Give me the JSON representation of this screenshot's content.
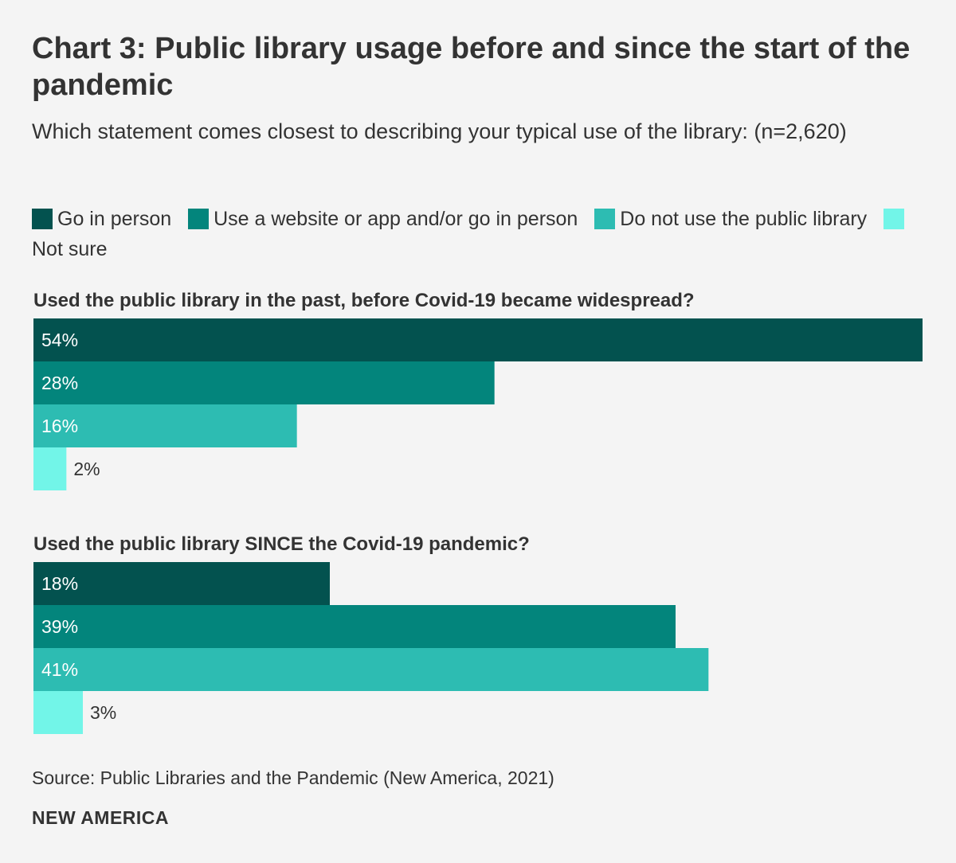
{
  "title": "Chart 3: Public library usage before and since the start of the pandemic",
  "subtitle": "Which statement comes closest to describing your typical use of the library: (n=2,620)",
  "source": "Source: Public Libraries and the Pandemic (New America, 2021)",
  "brand": "NEW AMERICA",
  "colors": {
    "go_in_person": "#03524f",
    "website_or_app": "#03857c",
    "do_not_use": "#2dbcb2",
    "not_sure": "#72f5e8",
    "background": "#f4f4f4",
    "text_dark": "#333333",
    "text_light": "#ffffff"
  },
  "legend": [
    {
      "label": "Go in person",
      "color": "#03524f"
    },
    {
      "label": "Use a website or app and/or go in person",
      "color": "#03857c"
    },
    {
      "label": "Do not use the public library",
      "color": "#2dbcb2"
    },
    {
      "label": "Not sure",
      "color": "#72f5e8"
    }
  ],
  "chart_data": {
    "type": "bar",
    "orientation": "horizontal",
    "title": "Chart 3: Public library usage before and since the start of the pandemic",
    "subtitle": "Which statement comes closest to describing your typical use of the library: (n=2,620)",
    "categories": [
      "Go in person",
      "Use a website or app and/or go in person",
      "Do not use the public library",
      "Not sure"
    ],
    "xlim": [
      0,
      54
    ],
    "grid": false,
    "legend_position": "top",
    "panels": [
      {
        "title": "Used the public library in the past, before Covid-19 became widespread?",
        "values": [
          54,
          28,
          16,
          2
        ],
        "labels": [
          "54%",
          "28%",
          "16%",
          "2%"
        ]
      },
      {
        "title": "Used the public library SINCE the Covid-19 pandemic?",
        "values": [
          18,
          39,
          41,
          3
        ],
        "labels": [
          "18%",
          "39%",
          "41%",
          "3%"
        ]
      }
    ]
  }
}
